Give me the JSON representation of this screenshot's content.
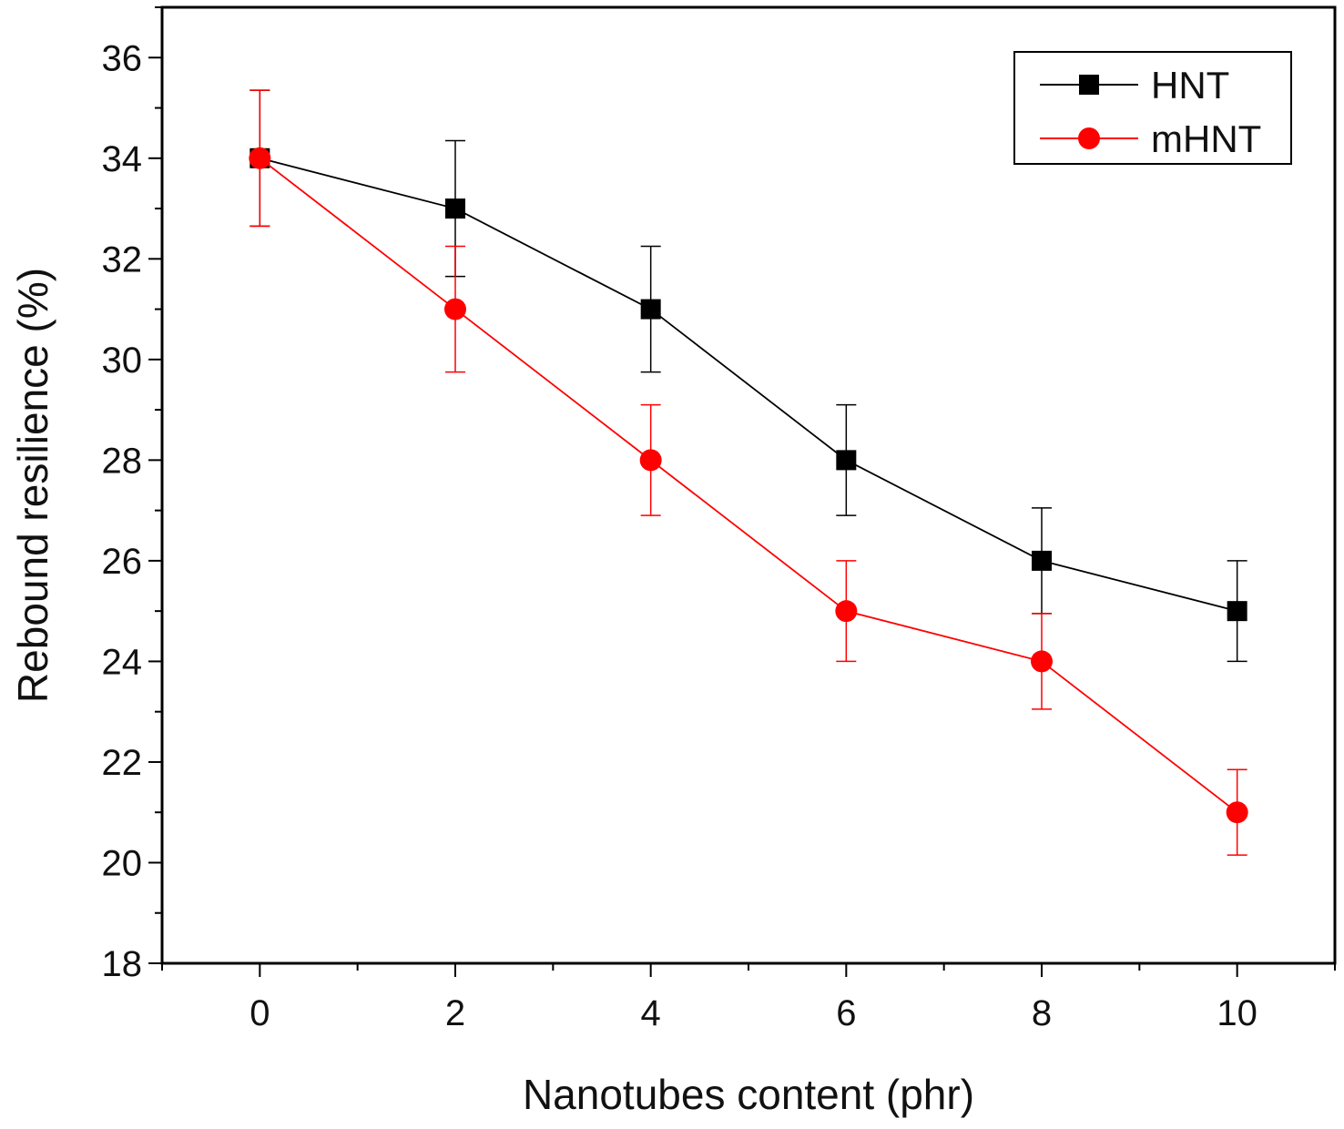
{
  "chart_data": {
    "type": "line",
    "title": "",
    "xlabel": "Nanotubes content (phr)",
    "ylabel": "Rebound resilience (%)",
    "xlim": [
      -1,
      11
    ],
    "ylim": [
      18,
      37
    ],
    "x_ticks": [
      "0",
      "2",
      "4",
      "6",
      "8",
      "10"
    ],
    "y_ticks": [
      "18",
      "20",
      "22",
      "24",
      "26",
      "28",
      "30",
      "32",
      "34",
      "36"
    ],
    "x_minor_step": 1,
    "y_minor_step": 1,
    "grid": false,
    "legend_position": "top-right",
    "x": [
      0,
      2,
      4,
      6,
      8,
      10
    ],
    "series": [
      {
        "name": "HNT",
        "color": "#000000",
        "marker": "square",
        "values": [
          34,
          33,
          31,
          28,
          26,
          25
        ],
        "errors": [
          1.35,
          1.35,
          1.25,
          1.1,
          1.05,
          1.0
        ]
      },
      {
        "name": "mHNT",
        "color": "#ff0000",
        "marker": "circle",
        "values": [
          34,
          31,
          28,
          25,
          24,
          21
        ],
        "errors": [
          1.35,
          1.25,
          1.1,
          1.0,
          0.95,
          0.85
        ]
      }
    ]
  }
}
